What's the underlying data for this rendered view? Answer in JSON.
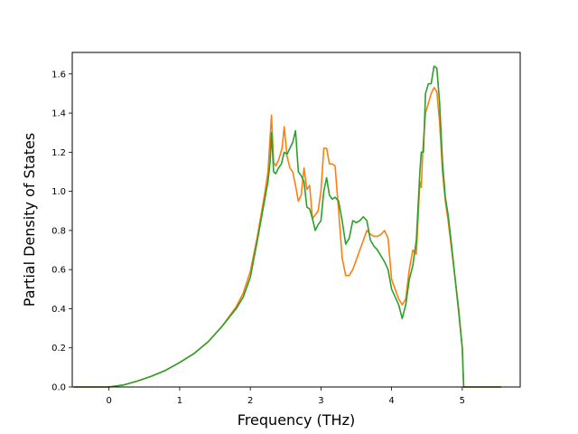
{
  "chart_data": {
    "type": "line",
    "title": "",
    "xlabel": "Frequency (THz)",
    "ylabel": "Partial Density of States",
    "xlim": [
      -0.52,
      5.82
    ],
    "ylim": [
      0.0,
      1.71
    ],
    "xticks": [
      0,
      1,
      2,
      3,
      4,
      5
    ],
    "yticks": [
      0.0,
      0.2,
      0.4,
      0.6,
      0.8,
      1.0,
      1.2,
      1.4,
      1.6
    ],
    "grid": false,
    "legend": "none",
    "series": [
      {
        "color": "#ff7f0e",
        "x": [
          -0.5,
          0.0,
          0.2,
          0.4,
          0.6,
          0.8,
          1.0,
          1.2,
          1.4,
          1.6,
          1.8,
          1.9,
          2.0,
          2.1,
          2.2,
          2.25,
          2.3,
          2.33,
          2.36,
          2.4,
          2.45,
          2.48,
          2.52,
          2.56,
          2.6,
          2.64,
          2.68,
          2.72,
          2.76,
          2.8,
          2.84,
          2.88,
          2.92,
          2.96,
          3.0,
          3.04,
          3.08,
          3.12,
          3.16,
          3.2,
          3.25,
          3.3,
          3.35,
          3.4,
          3.45,
          3.5,
          3.55,
          3.6,
          3.65,
          3.7,
          3.75,
          3.8,
          3.85,
          3.9,
          3.95,
          4.0,
          4.05,
          4.1,
          4.15,
          4.2,
          4.25,
          4.3,
          4.35,
          4.4,
          4.42,
          4.44,
          4.48,
          4.52,
          4.56,
          4.6,
          4.64,
          4.68,
          4.72,
          4.76,
          4.8,
          4.85,
          4.9,
          4.95,
          5.0,
          5.02,
          5.05,
          5.1,
          5.55
        ],
        "y": [
          0.0,
          0.0,
          0.01,
          0.03,
          0.055,
          0.085,
          0.125,
          0.17,
          0.23,
          0.31,
          0.41,
          0.48,
          0.59,
          0.77,
          0.98,
          1.1,
          1.39,
          1.15,
          1.13,
          1.16,
          1.22,
          1.33,
          1.18,
          1.12,
          1.1,
          1.03,
          0.95,
          0.98,
          1.12,
          1.01,
          1.03,
          0.86,
          0.88,
          0.9,
          1.0,
          1.22,
          1.22,
          1.14,
          1.14,
          1.13,
          0.9,
          0.66,
          0.57,
          0.57,
          0.6,
          0.65,
          0.7,
          0.75,
          0.8,
          0.78,
          0.77,
          0.77,
          0.78,
          0.8,
          0.76,
          0.55,
          0.5,
          0.45,
          0.42,
          0.45,
          0.6,
          0.7,
          0.68,
          1.05,
          1.02,
          1.2,
          1.4,
          1.45,
          1.5,
          1.53,
          1.51,
          1.35,
          1.1,
          0.95,
          0.85,
          0.7,
          0.55,
          0.4,
          0.2,
          0.0,
          0.0,
          0.0,
          0.0
        ]
      },
      {
        "color": "#2ca02c",
        "x": [
          -0.5,
          0.0,
          0.2,
          0.4,
          0.6,
          0.8,
          1.0,
          1.2,
          1.4,
          1.6,
          1.8,
          1.9,
          2.0,
          2.1,
          2.2,
          2.25,
          2.28,
          2.3,
          2.33,
          2.36,
          2.4,
          2.44,
          2.48,
          2.52,
          2.56,
          2.6,
          2.64,
          2.68,
          2.72,
          2.76,
          2.8,
          2.84,
          2.88,
          2.92,
          2.96,
          3.0,
          3.04,
          3.08,
          3.12,
          3.16,
          3.2,
          3.25,
          3.3,
          3.35,
          3.4,
          3.45,
          3.5,
          3.55,
          3.6,
          3.65,
          3.7,
          3.75,
          3.8,
          3.85,
          3.9,
          3.95,
          4.0,
          4.05,
          4.1,
          4.15,
          4.2,
          4.25,
          4.3,
          4.35,
          4.4,
          4.42,
          4.45,
          4.48,
          4.52,
          4.56,
          4.6,
          4.64,
          4.68,
          4.72,
          4.76,
          4.8,
          4.85,
          4.9,
          4.95,
          5.0,
          5.02,
          5.05,
          5.1,
          5.55
        ],
        "y": [
          0.0,
          0.0,
          0.01,
          0.03,
          0.055,
          0.085,
          0.125,
          0.17,
          0.23,
          0.31,
          0.4,
          0.46,
          0.56,
          0.75,
          0.95,
          1.05,
          1.15,
          1.3,
          1.1,
          1.09,
          1.12,
          1.14,
          1.2,
          1.19,
          1.22,
          1.25,
          1.31,
          1.1,
          1.08,
          1.05,
          0.92,
          0.91,
          0.86,
          0.8,
          0.83,
          0.85,
          1.0,
          1.07,
          0.98,
          0.96,
          0.97,
          0.95,
          0.85,
          0.73,
          0.76,
          0.85,
          0.84,
          0.85,
          0.87,
          0.85,
          0.75,
          0.72,
          0.7,
          0.67,
          0.64,
          0.6,
          0.5,
          0.46,
          0.42,
          0.35,
          0.42,
          0.55,
          0.62,
          0.75,
          1.1,
          1.2,
          1.2,
          1.5,
          1.55,
          1.55,
          1.64,
          1.63,
          1.45,
          1.15,
          0.97,
          0.88,
          0.72,
          0.55,
          0.38,
          0.2,
          0.0,
          0.0,
          0.0,
          0.0
        ]
      }
    ]
  }
}
